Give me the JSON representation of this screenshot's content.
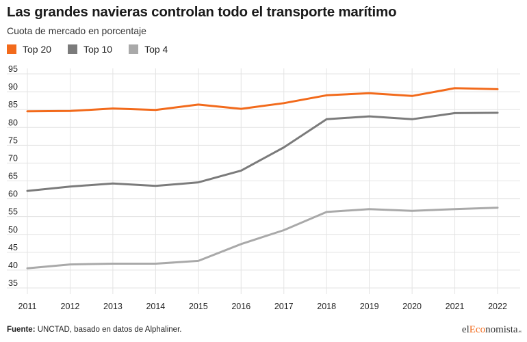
{
  "chart_data": {
    "type": "line",
    "title": "Las grandes navieras controlan todo el transporte marítimo",
    "subtitle": "Cuota de mercado en porcentaje",
    "xlabel": "",
    "ylabel": "",
    "categories": [
      "2011",
      "2012",
      "2013",
      "2014",
      "2015",
      "2016",
      "2017",
      "2018",
      "2019",
      "2020",
      "2021",
      "2022"
    ],
    "ylim": [
      35,
      95
    ],
    "yticks": [
      35,
      40,
      45,
      50,
      55,
      60,
      65,
      70,
      75,
      80,
      85,
      90,
      95
    ],
    "grid": true,
    "legend_position": "top-left",
    "series": [
      {
        "name": "Top 20",
        "color": "#f26a1b",
        "values": [
          84.5,
          84.6,
          85.3,
          84.9,
          86.4,
          85.2,
          86.8,
          89.0,
          89.6,
          88.8,
          91.0,
          90.7
        ]
      },
      {
        "name": "Top 10",
        "color": "#7b7b7b",
        "values": [
          62.2,
          63.4,
          64.3,
          63.6,
          64.6,
          67.9,
          74.4,
          82.3,
          83.1,
          82.3,
          84.0,
          84.1
        ]
      },
      {
        "name": "Top 4",
        "color": "#a9a9a9",
        "values": [
          40.5,
          41.6,
          41.8,
          41.8,
          42.6,
          47.3,
          51.2,
          56.3,
          57.1,
          56.6,
          57.1,
          57.5
        ]
      }
    ]
  },
  "footer": {
    "source_key": "Fuente:",
    "source_text": " UNCTAD, basado en datos de Alphaliner."
  },
  "brand": {
    "prefix": "el",
    "accent": "Eco",
    "suffix": "nomista",
    "tld": ".es"
  }
}
